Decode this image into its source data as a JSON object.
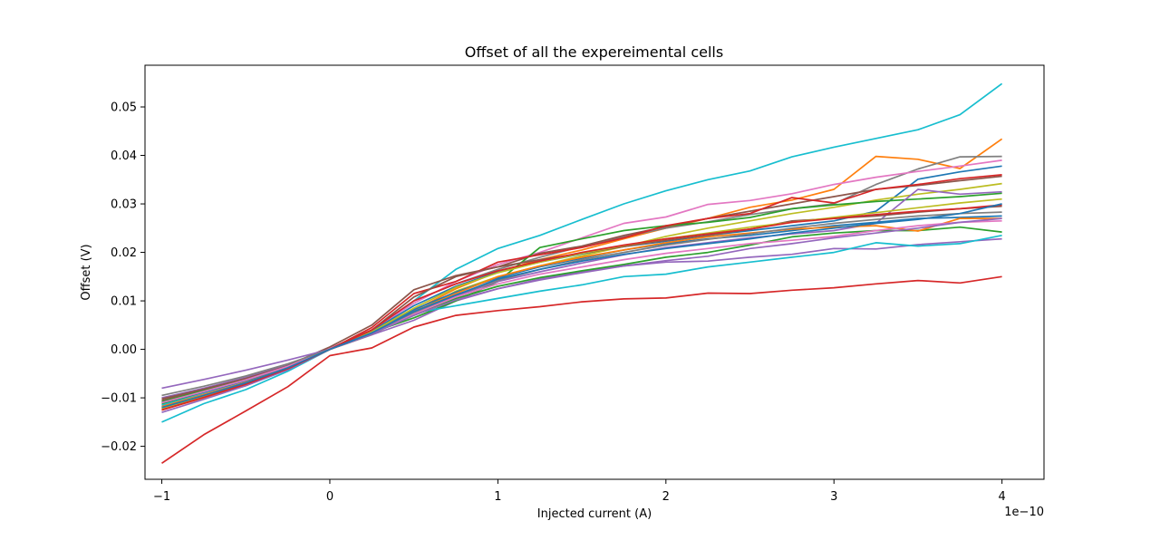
{
  "chart_data": {
    "type": "line",
    "title": "Offset of all the expereimental cells",
    "xlabel": "Injected current (A)",
    "ylabel": "Offset (V)",
    "x_offset_label": "1e−10",
    "x_unit_multiplier": 1e-10,
    "xlim": [
      -1.1,
      4.25
    ],
    "ylim": [
      -0.0268,
      0.0586
    ],
    "xticks": [
      -1,
      0,
      1,
      2,
      3,
      4
    ],
    "xtick_labels": [
      "−1",
      "0",
      "1",
      "2",
      "3",
      "4"
    ],
    "yticks": [
      -0.02,
      -0.01,
      0.0,
      0.01,
      0.02,
      0.03,
      0.04,
      0.05
    ],
    "ytick_labels": [
      "−0.02",
      "−0.01",
      "0.00",
      "0.01",
      "0.02",
      "0.03",
      "0.04",
      "0.05"
    ],
    "grid": false,
    "legend": "none",
    "x": [
      -1,
      -0.75,
      -0.5,
      -0.25,
      0,
      0.25,
      0.5,
      0.75,
      1,
      1.25,
      1.5,
      1.75,
      2,
      2.25,
      2.5,
      2.75,
      3,
      3.25,
      3.5,
      3.75,
      4
    ],
    "series": [
      {
        "color": "#17becf",
        "values": [
          -0.015,
          -0.0112,
          -0.0083,
          -0.0045,
          0.0,
          0.0033,
          0.01,
          0.0165,
          0.0208,
          0.0235,
          0.0268,
          0.03,
          0.0327,
          0.035,
          0.0368,
          0.0397,
          0.0417,
          0.0435,
          0.0453,
          0.0484,
          0.0548
        ]
      },
      {
        "color": "#d62728",
        "values": [
          -0.0235,
          -0.0176,
          -0.0127,
          -0.0077,
          -0.0013,
          0.0003,
          0.0046,
          0.007,
          0.008,
          0.0088,
          0.0098,
          0.0104,
          0.0106,
          0.0116,
          0.0115,
          0.0122,
          0.0127,
          0.0135,
          0.0142,
          0.0137,
          0.015
        ]
      },
      {
        "color": "#ff7f0e",
        "values": [
          -0.0125,
          -0.01,
          -0.0075,
          -0.004,
          0.0003,
          0.0035,
          0.008,
          0.0125,
          0.016,
          0.0185,
          0.0205,
          0.0228,
          0.025,
          0.027,
          0.0293,
          0.0308,
          0.033,
          0.0398,
          0.0392,
          0.0373,
          0.0434
        ]
      },
      {
        "color": "#7f7f7f",
        "values": [
          -0.011,
          -0.0088,
          -0.0064,
          -0.0037,
          0.0002,
          0.004,
          0.01,
          0.0135,
          0.0165,
          0.019,
          0.0212,
          0.0232,
          0.025,
          0.0263,
          0.0278,
          0.029,
          0.03,
          0.034,
          0.0372,
          0.0397,
          0.0398
        ]
      },
      {
        "color": "#e377c2",
        "values": [
          -0.0115,
          -0.009,
          -0.0066,
          -0.0036,
          0.0002,
          0.004,
          0.0095,
          0.014,
          0.0175,
          0.02,
          0.023,
          0.026,
          0.0273,
          0.0299,
          0.0307,
          0.0321,
          0.034,
          0.0355,
          0.0367,
          0.0378,
          0.039
        ]
      },
      {
        "color": "#1f77b4",
        "values": [
          -0.0118,
          -0.0093,
          -0.0068,
          -0.0037,
          0.0,
          0.0038,
          0.009,
          0.013,
          0.016,
          0.018,
          0.0197,
          0.0212,
          0.0223,
          0.0235,
          0.0245,
          0.0255,
          0.0265,
          0.0285,
          0.0351,
          0.0366,
          0.0378
        ]
      },
      {
        "color": "#8c564b",
        "values": [
          -0.0105,
          -0.0083,
          -0.006,
          -0.0033,
          0.0005,
          0.005,
          0.0123,
          0.0152,
          0.017,
          0.0198,
          0.0213,
          0.0235,
          0.0253,
          0.027,
          0.0285,
          0.03,
          0.0315,
          0.033,
          0.0338,
          0.0348,
          0.0357
        ]
      },
      {
        "color": "#bcbd22",
        "values": [
          -0.012,
          -0.0095,
          -0.007,
          -0.004,
          0.0,
          0.003,
          0.0075,
          0.012,
          0.015,
          0.0172,
          0.0193,
          0.0212,
          0.0233,
          0.025,
          0.0265,
          0.028,
          0.0293,
          0.0308,
          0.032,
          0.033,
          0.0342
        ]
      },
      {
        "color": "#9467bd",
        "values": [
          -0.008,
          -0.0062,
          -0.0043,
          -0.0022,
          0.0,
          0.003,
          0.006,
          0.01,
          0.0125,
          0.0145,
          0.016,
          0.0172,
          0.018,
          0.0182,
          0.019,
          0.0196,
          0.0208,
          0.0207,
          0.0216,
          0.0222,
          0.0228
        ]
      },
      {
        "color": "#2ca02c",
        "values": [
          -0.0112,
          -0.0088,
          -0.0064,
          -0.0036,
          0.0,
          0.0035,
          0.0065,
          0.01,
          0.014,
          0.021,
          0.0228,
          0.0245,
          0.0255,
          0.0262,
          0.0272,
          0.029,
          0.0298,
          0.0305,
          0.031,
          0.0315,
          0.0322
        ]
      },
      {
        "color": "#d62728",
        "values": [
          -0.0125,
          -0.0098,
          -0.007,
          -0.004,
          0.0,
          0.0045,
          0.0115,
          0.014,
          0.018,
          0.0195,
          0.021,
          0.023,
          0.0255,
          0.027,
          0.028,
          0.0313,
          0.0302,
          0.033,
          0.034,
          0.0352,
          0.036
        ]
      },
      {
        "color": "#17becf",
        "values": [
          -0.0115,
          -0.0092,
          -0.0068,
          -0.0039,
          0.0,
          0.0033,
          0.0075,
          0.009,
          0.0105,
          0.012,
          0.0133,
          0.015,
          0.0155,
          0.017,
          0.018,
          0.019,
          0.02,
          0.022,
          0.0213,
          0.0218,
          0.0235
        ]
      },
      {
        "color": "#9467bd",
        "values": [
          -0.01,
          -0.008,
          -0.0058,
          -0.0032,
          0.0,
          0.0035,
          0.0075,
          0.011,
          0.014,
          0.016,
          0.0178,
          0.0195,
          0.021,
          0.022,
          0.023,
          0.0238,
          0.0245,
          0.026,
          0.033,
          0.032,
          0.0325
        ]
      },
      {
        "color": "#2ca02c",
        "values": [
          -0.0108,
          -0.0085,
          -0.0062,
          -0.0034,
          0.0,
          0.0032,
          0.007,
          0.0105,
          0.013,
          0.0148,
          0.0162,
          0.0175,
          0.019,
          0.02,
          0.0215,
          0.0232,
          0.024,
          0.0245,
          0.0245,
          0.0252,
          0.0242
        ]
      },
      {
        "color": "#1f77b4",
        "values": [
          -0.011,
          -0.0088,
          -0.0064,
          -0.0036,
          0.0,
          0.0036,
          0.0082,
          0.0118,
          0.0148,
          0.017,
          0.0188,
          0.0205,
          0.0218,
          0.0228,
          0.0235,
          0.0245,
          0.0255,
          0.0262,
          0.027,
          0.0272,
          0.0275
        ]
      },
      {
        "color": "#ff7f0e",
        "values": [
          -0.0118,
          -0.0093,
          -0.0068,
          -0.0038,
          0.0,
          0.0034,
          0.0078,
          0.0115,
          0.015,
          0.0172,
          0.019,
          0.0205,
          0.022,
          0.0232,
          0.024,
          0.0248,
          0.0252,
          0.0255,
          0.0244,
          0.027,
          0.027
        ]
      },
      {
        "color": "#8c564b",
        "values": [
          -0.0102,
          -0.0082,
          -0.006,
          -0.0034,
          0.0,
          0.004,
          0.0108,
          0.015,
          0.017,
          0.0185,
          0.0198,
          0.0212,
          0.0225,
          0.0235,
          0.0248,
          0.0265,
          0.027,
          0.0275,
          0.0283,
          0.029,
          0.0295
        ]
      },
      {
        "color": "#e377c2",
        "values": [
          -0.011,
          -0.0087,
          -0.0063,
          -0.0035,
          0.0,
          0.0033,
          0.0073,
          0.0108,
          0.0135,
          0.0155,
          0.017,
          0.0185,
          0.0198,
          0.0208,
          0.0218,
          0.0225,
          0.0233,
          0.0245,
          0.0255,
          0.0262,
          0.0265
        ]
      },
      {
        "color": "#7f7f7f",
        "values": [
          -0.0095,
          -0.0076,
          -0.0055,
          -0.003,
          0.0,
          0.0034,
          0.0076,
          0.0112,
          0.0142,
          0.0165,
          0.0185,
          0.02,
          0.0215,
          0.0227,
          0.0238,
          0.025,
          0.026,
          0.0268,
          0.0275,
          0.028,
          0.0283
        ]
      },
      {
        "color": "#bcbd22",
        "values": [
          -0.0122,
          -0.0097,
          -0.0071,
          -0.004,
          0.0,
          0.0036,
          0.0085,
          0.0128,
          0.0158,
          0.018,
          0.0198,
          0.0214,
          0.0228,
          0.024,
          0.0252,
          0.0262,
          0.0272,
          0.0282,
          0.0292,
          0.0302,
          0.031
        ]
      },
      {
        "color": "#9467bd",
        "values": [
          -0.013,
          -0.0103,
          -0.0075,
          -0.0042,
          0.0,
          0.0032,
          0.007,
          0.0102,
          0.0125,
          0.0143,
          0.0158,
          0.0172,
          0.0183,
          0.0192,
          0.0208,
          0.0218,
          0.023,
          0.024,
          0.025,
          0.0262,
          0.027
        ]
      },
      {
        "color": "#d62728",
        "values": [
          -0.0125,
          -0.0099,
          -0.0072,
          -0.004,
          0.0,
          0.004,
          0.01,
          0.0135,
          0.0162,
          0.0182,
          0.02,
          0.0215,
          0.0228,
          0.0238,
          0.0248,
          0.0262,
          0.027,
          0.0278,
          0.0285,
          0.029,
          0.0298
        ]
      },
      {
        "color": "#1f77b4",
        "values": [
          -0.012,
          -0.0095,
          -0.0069,
          -0.0038,
          0.0,
          0.0034,
          0.0078,
          0.0112,
          0.0145,
          0.0165,
          0.0182,
          0.0196,
          0.0208,
          0.0218,
          0.0228,
          0.024,
          0.025,
          0.026,
          0.0268,
          0.028,
          0.03
        ]
      }
    ]
  }
}
